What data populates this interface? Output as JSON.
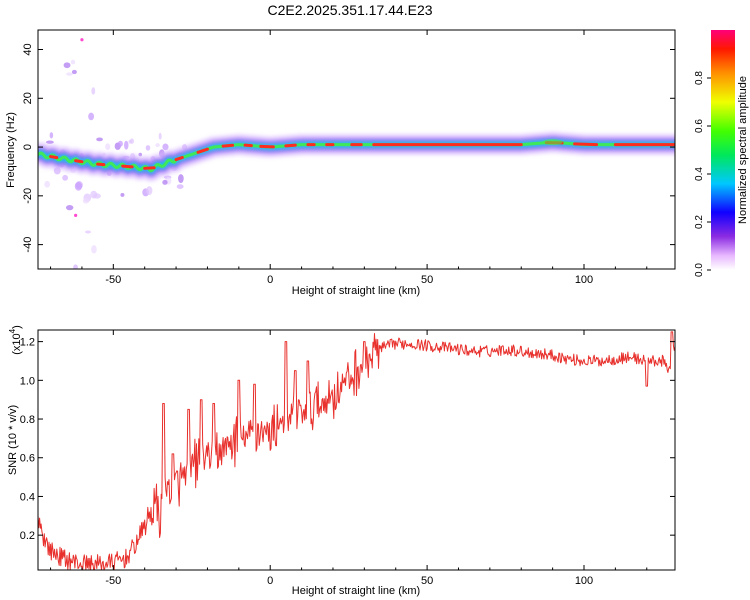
{
  "page_title": "C2E2.2025.351.17.44.E23",
  "chart_data": [
    {
      "type": "heatmap",
      "title": "C2E2.2025.351.17.44.E23",
      "xlabel": "Height of straight line (km)",
      "ylabel": "Frequency (Hz)",
      "xlim": [
        -74,
        129
      ],
      "ylim": [
        -50,
        48
      ],
      "xticks": [
        -50,
        0,
        50,
        100
      ],
      "xtick_labels": [
        "-50",
        "0",
        "50",
        "100"
      ],
      "yticks": [
        -40,
        -20,
        0,
        20,
        40
      ],
      "ytick_labels": [
        "-40",
        "-20",
        "0",
        "20",
        "40"
      ],
      "ridge": {
        "height_km": [
          -74,
          -65,
          -55,
          -45,
          -38,
          -32,
          -25,
          -18,
          -10,
          0,
          10,
          20,
          30,
          40,
          50,
          60,
          70,
          80,
          90,
          100,
          110,
          120,
          129
        ],
        "frequency_hz": [
          -3,
          -5,
          -7,
          -8,
          -9,
          -6,
          -3,
          0,
          1,
          0,
          1,
          1,
          1,
          1,
          1,
          1,
          1,
          1,
          2,
          1,
          1,
          1,
          1
        ]
      },
      "colorbar": {
        "label": "Normalized spectral amplitude",
        "range": [
          0,
          1
        ],
        "ticks": [
          0.0,
          0.2,
          0.4,
          0.6,
          0.8
        ],
        "tick_labels": [
          "0.0",
          "0.2",
          "0.4",
          "0.6",
          "0.8"
        ]
      }
    },
    {
      "type": "line",
      "xlabel": "Height of straight line (km)",
      "ylabel": "SNR (10 * v/v)",
      "y_multiplier": "(x10",
      "y_multiplier_exp": "4",
      "y_multiplier_close": ")",
      "xlim": [
        -74,
        129
      ],
      "ylim": [
        0.02,
        1.26
      ],
      "xticks": [
        -50,
        0,
        50,
        100
      ],
      "xtick_labels": [
        "-50",
        "0",
        "50",
        "100"
      ],
      "yticks": [
        0.2,
        0.4,
        0.6,
        0.8,
        1.0,
        1.2
      ],
      "ytick_labels": [
        "0.2",
        "0.4",
        "0.6",
        "0.8",
        "1.0",
        "1.2"
      ],
      "series": [
        {
          "name": "SNR",
          "color": "#e8302c",
          "x": [
            -74,
            -72,
            -70,
            -66,
            -62,
            -58,
            -54,
            -50,
            -46,
            -43,
            -40,
            -37,
            -35,
            -34,
            -33,
            -31,
            -28,
            -25,
            -22,
            -18,
            -15,
            -12,
            -9,
            -6,
            -3,
            0,
            3,
            6,
            9,
            12,
            16,
            20,
            24,
            28,
            32,
            36,
            40,
            45,
            50,
            55,
            60,
            65,
            70,
            75,
            80,
            85,
            90,
            95,
            100,
            105,
            110,
            115,
            120,
            125,
            127,
            129
          ],
          "y": [
            0.3,
            0.18,
            0.12,
            0.08,
            0.06,
            0.05,
            0.05,
            0.06,
            0.08,
            0.15,
            0.25,
            0.35,
            0.3,
            0.55,
            0.45,
            0.42,
            0.5,
            0.55,
            0.6,
            0.62,
            0.65,
            0.68,
            0.7,
            0.72,
            0.75,
            0.72,
            0.8,
            0.78,
            0.82,
            0.85,
            0.88,
            0.92,
            1.0,
            1.05,
            1.12,
            1.17,
            1.19,
            1.19,
            1.18,
            1.17,
            1.16,
            1.15,
            1.15,
            1.16,
            1.15,
            1.14,
            1.13,
            1.11,
            1.1,
            1.1,
            1.11,
            1.12,
            1.1,
            1.1,
            1.05,
            1.2
          ]
        }
      ]
    }
  ]
}
